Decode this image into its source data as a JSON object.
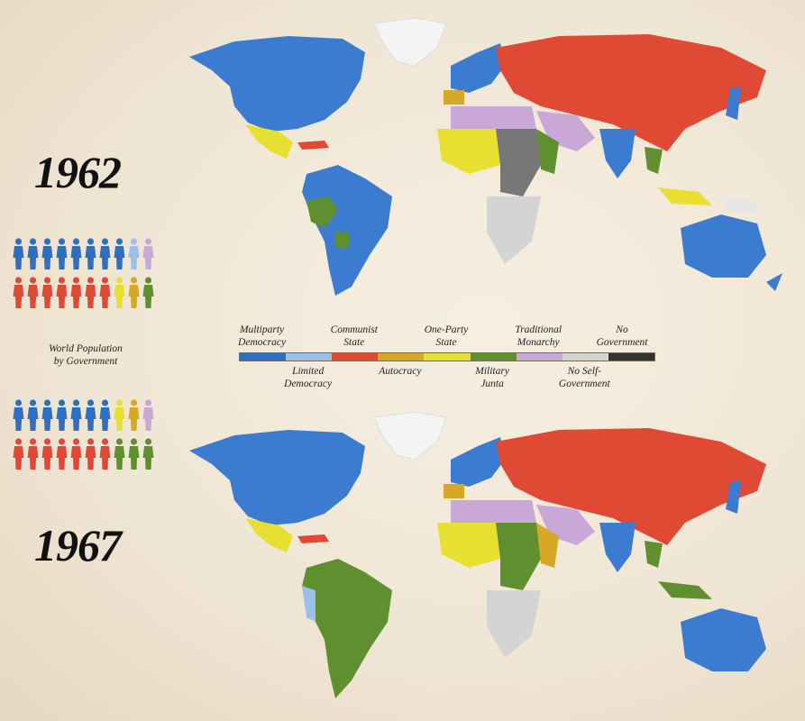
{
  "years": {
    "top": "1962",
    "bottom": "1967"
  },
  "population_title": "World Population by Government",
  "population_title_line1": "World Population",
  "population_title_line2": "by Government",
  "legend": {
    "categories": [
      {
        "key": "multiparty_democracy",
        "line1": "Multiparty",
        "line2": "Democracy",
        "color": "#2f6fc2",
        "pos": "top"
      },
      {
        "key": "limited_democracy",
        "line1": "Limited",
        "line2": "Democracy",
        "color": "#9cc0ea",
        "pos": "bottom"
      },
      {
        "key": "communist_state",
        "line1": "Communist",
        "line2": "State",
        "color": "#e04a34",
        "pos": "top"
      },
      {
        "key": "autocracy",
        "line1": "Autocracy",
        "line2": "",
        "color": "#d5a925",
        "pos": "bottom"
      },
      {
        "key": "one_party_state",
        "line1": "One-Party",
        "line2": "State",
        "color": "#e8e031",
        "pos": "top"
      },
      {
        "key": "military_junta",
        "line1": "Military",
        "line2": "Junta",
        "color": "#5f8f2e",
        "pos": "bottom"
      },
      {
        "key": "traditional_monarchy",
        "line1": "Traditional",
        "line2": "Monarchy",
        "color": "#c9a7d6",
        "pos": "top"
      },
      {
        "key": "no_self_government",
        "line1": "No Self-",
        "line2": "Government",
        "color": "#d4d4d4",
        "pos": "bottom"
      },
      {
        "key": "no_government",
        "line1": "No",
        "line2": "Government",
        "color": "#333333",
        "pos": "top"
      }
    ]
  },
  "population_1962": {
    "row1": [
      "multiparty_democracy",
      "multiparty_democracy",
      "multiparty_democracy",
      "multiparty_democracy",
      "multiparty_democracy",
      "multiparty_democracy",
      "multiparty_democracy",
      "multiparty_democracy",
      "limited_democracy",
      "traditional_monarchy"
    ],
    "row2": [
      "communist_state",
      "communist_state",
      "communist_state",
      "communist_state",
      "communist_state",
      "communist_state",
      "communist_state",
      "one_party_state",
      "autocracy",
      "military_junta"
    ]
  },
  "population_1967": {
    "row1": [
      "multiparty_democracy",
      "multiparty_democracy",
      "multiparty_democracy",
      "multiparty_democracy",
      "multiparty_democracy",
      "multiparty_democracy",
      "multiparty_democracy",
      "one_party_state",
      "autocracy",
      "traditional_monarchy"
    ],
    "row2": [
      "communist_state",
      "communist_state",
      "communist_state",
      "communist_state",
      "communist_state",
      "communist_state",
      "communist_state",
      "military_junta",
      "military_junta",
      "military_junta"
    ]
  }
}
